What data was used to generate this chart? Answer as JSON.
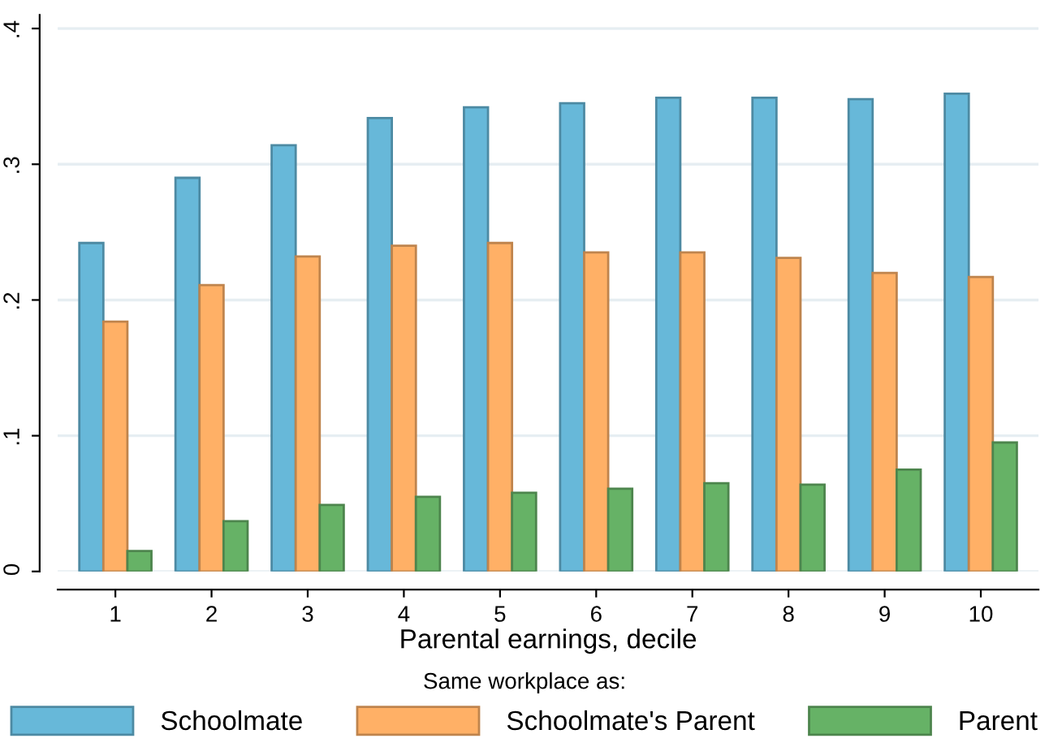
{
  "chart_data": {
    "type": "bar",
    "xlabel": "Parental earnings, decile",
    "legend_title": "Same workplace as:",
    "categories": [
      "1",
      "2",
      "3",
      "4",
      "5",
      "6",
      "7",
      "8",
      "9",
      "10"
    ],
    "series": [
      {
        "name": "Schoolmate",
        "color": "#67b8d9",
        "values": [
          0.242,
          0.29,
          0.314,
          0.334,
          0.342,
          0.345,
          0.349,
          0.349,
          0.348,
          0.352
        ]
      },
      {
        "name": "Schoolmate's Parent",
        "color": "#ffb066",
        "values": [
          0.184,
          0.211,
          0.232,
          0.24,
          0.242,
          0.235,
          0.235,
          0.231,
          0.22,
          0.217
        ]
      },
      {
        "name": "Parent",
        "color": "#66b266",
        "values": [
          0.015,
          0.037,
          0.049,
          0.055,
          0.058,
          0.061,
          0.065,
          0.064,
          0.075,
          0.095
        ]
      }
    ],
    "ylim": [
      0,
      0.41
    ],
    "yticks": [
      {
        "value": 0,
        "label": "0"
      },
      {
        "value": 0.1,
        "label": ".1"
      },
      {
        "value": 0.2,
        "label": ".2"
      },
      {
        "value": 0.3,
        "label": ".3"
      },
      {
        "value": 0.4,
        "label": ".4"
      }
    ],
    "grid": "y",
    "legend": "bottom"
  }
}
